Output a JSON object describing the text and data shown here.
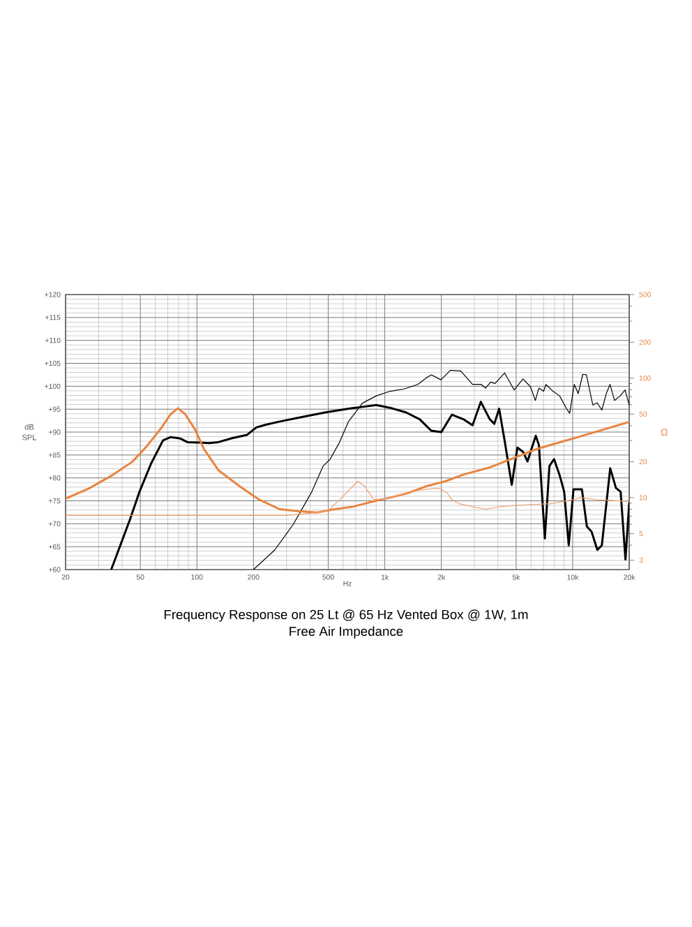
{
  "chart_data": {
    "type": "line",
    "title": "Frequency Response on 25 Lt @ 65 Hz Vented Box @ 1W, 1m",
    "subtitle": "Free Air Impedance",
    "xlabel": "Hz",
    "ylabel": "Ω",
    "y2label": "dB SPL",
    "xlim": [
      20,
      20000
    ],
    "xticks": [
      20,
      50,
      100,
      200,
      500,
      {
        "value": 1000,
        "label": "1k"
      },
      {
        "value": 2000,
        "label": "2k"
      },
      {
        "value": 5000,
        "label": "5k"
      },
      {
        "value": 10000,
        "label": "10k"
      },
      {
        "value": 20000,
        "label": "20k"
      }
    ],
    "ylim": [
      2.5,
      500
    ],
    "yticks": [
      3,
      5,
      10,
      20,
      50,
      100,
      200,
      500
    ],
    "y2lim": [
      60,
      120
    ],
    "y2ticks": [
      {
        "value": 60,
        "label": "+60"
      },
      {
        "value": 65,
        "label": "+65"
      },
      {
        "value": 70,
        "label": "+70"
      },
      {
        "value": 75,
        "label": "+75"
      },
      {
        "value": 80,
        "label": "+80"
      },
      {
        "value": 85,
        "label": "+85"
      },
      {
        "value": 90,
        "label": "+90"
      },
      {
        "value": 95,
        "label": "+95"
      },
      {
        "value": 100,
        "label": "+100"
      },
      {
        "value": 105,
        "label": "+105"
      },
      {
        "value": 110,
        "label": "+110"
      },
      {
        "value": 115,
        "label": "+115"
      },
      {
        "value": 120,
        "label": "+120"
      }
    ],
    "log": "xy",
    "grid": true,
    "line_style": "solid",
    "series": [
      {
        "color": "#000000",
        "axis": "y2",
        "x": [
          35,
          44,
          49.5,
          57,
          66,
          72.5,
          81.5,
          89,
          103,
          116,
          130,
          155,
          185,
          207,
          232,
          276,
          365,
          484,
          641,
          760,
          900,
          1066,
          1295,
          1534,
          1766,
          2000,
          2277,
          2619,
          2932,
          3244,
          3620,
          3830,
          4060,
          4340,
          4740,
          5080,
          5440,
          5750,
          6360,
          6610,
          7110,
          7520,
          7960,
          8520,
          9010,
          9530,
          10100,
          11200,
          11900,
          12600,
          13530,
          14300,
          15840,
          17000,
          18000,
          19100,
          20000
        ],
        "values": [
          60,
          70.9,
          77,
          83.1,
          88.2,
          88.9,
          88.6,
          87.8,
          87.7,
          87.6,
          87.8,
          88.7,
          89.4,
          91,
          91.6,
          92.3,
          93.3,
          94.3,
          95.1,
          95.5,
          95.9,
          95.3,
          94.3,
          92.8,
          90.3,
          90,
          93.8,
          92.8,
          91.5,
          96.6,
          92.8,
          91.8,
          95.1,
          88.2,
          78.5,
          86.6,
          85.7,
          83.6,
          89.2,
          87.2,
          66.8,
          82.6,
          84.1,
          80.6,
          77,
          65.3,
          77.5,
          77.5,
          69.4,
          68.3,
          64.3,
          65.3,
          82.1,
          77.8,
          77,
          62.2,
          74.5
        ]
      },
      {
        "color": "#000000",
        "axis": "y2",
        "x": [
          200,
          260,
          326,
          409,
          470,
          512,
          573,
          641,
          760,
          900,
          1066,
          1264,
          1497,
          1676,
          1770,
          1990,
          2236,
          2540,
          2930,
          3260,
          3440,
          3660,
          3860,
          4340,
          4880,
          5440,
          5960,
          6330,
          6610,
          7000,
          7210,
          7860,
          8520,
          9280,
          9640,
          10200,
          10700,
          11320,
          11830,
          12800,
          13500,
          14300,
          15100,
          15800,
          16700,
          17900,
          19000,
          20000
        ],
        "values": [
          60,
          64.3,
          69.9,
          77,
          82.6,
          84.1,
          87.7,
          92.3,
          96.3,
          97.9,
          98.9,
          99.4,
          100.4,
          101.9,
          102.5,
          101.4,
          103.5,
          103.3,
          100.4,
          100.4,
          99.6,
          100.9,
          100.6,
          102.9,
          99.2,
          101.6,
          99.9,
          96.9,
          99.6,
          98.9,
          100.4,
          98.9,
          97.9,
          95.1,
          94.1,
          100.4,
          98.4,
          102.6,
          102.5,
          95.9,
          96.4,
          94.8,
          98.4,
          100.4,
          96.9,
          97.9,
          99.2,
          95.9
        ]
      },
      {
        "color": "#e8843f",
        "x": [
          20,
          26.8,
          35.9,
          45.4,
          54.2,
          64.4,
          72.6,
          79.3,
          86.6,
          97.9,
          109,
          130,
          168,
          215,
          276,
          344,
          433,
          541,
          676,
          847,
          1066,
          1324,
          1676,
          2100,
          2620,
          3660,
          6430,
          11320,
          20000
        ],
        "values": [
          9.8,
          12,
          15.6,
          20,
          27,
          38,
          50,
          56,
          50,
          37,
          25.5,
          17,
          12.5,
          9.6,
          8,
          7.7,
          7.5,
          8,
          8.4,
          9.2,
          10,
          10.9,
          12.5,
          13.7,
          15.6,
          18,
          25.5,
          33,
          43
        ]
      },
      {
        "color": "#efa070",
        "x": [
          20,
          100,
          200,
          300,
          400,
          500,
          590,
          718,
          780,
          874,
          1000,
          1497,
          1880,
          2000,
          2150,
          2280,
          2490,
          2930,
          3440,
          4100,
          5440,
          7620,
          10100,
          11000,
          13500,
          20000
        ],
        "values": [
          7.1,
          7.1,
          7.1,
          7.1,
          7.4,
          7.8,
          10,
          13.7,
          12.5,
          9.6,
          9.8,
          11.5,
          12,
          11.7,
          10.9,
          9.6,
          8.9,
          8.4,
          8,
          8.4,
          8.7,
          8.9,
          9.6,
          10,
          9.6,
          9.3
        ]
      }
    ]
  }
}
